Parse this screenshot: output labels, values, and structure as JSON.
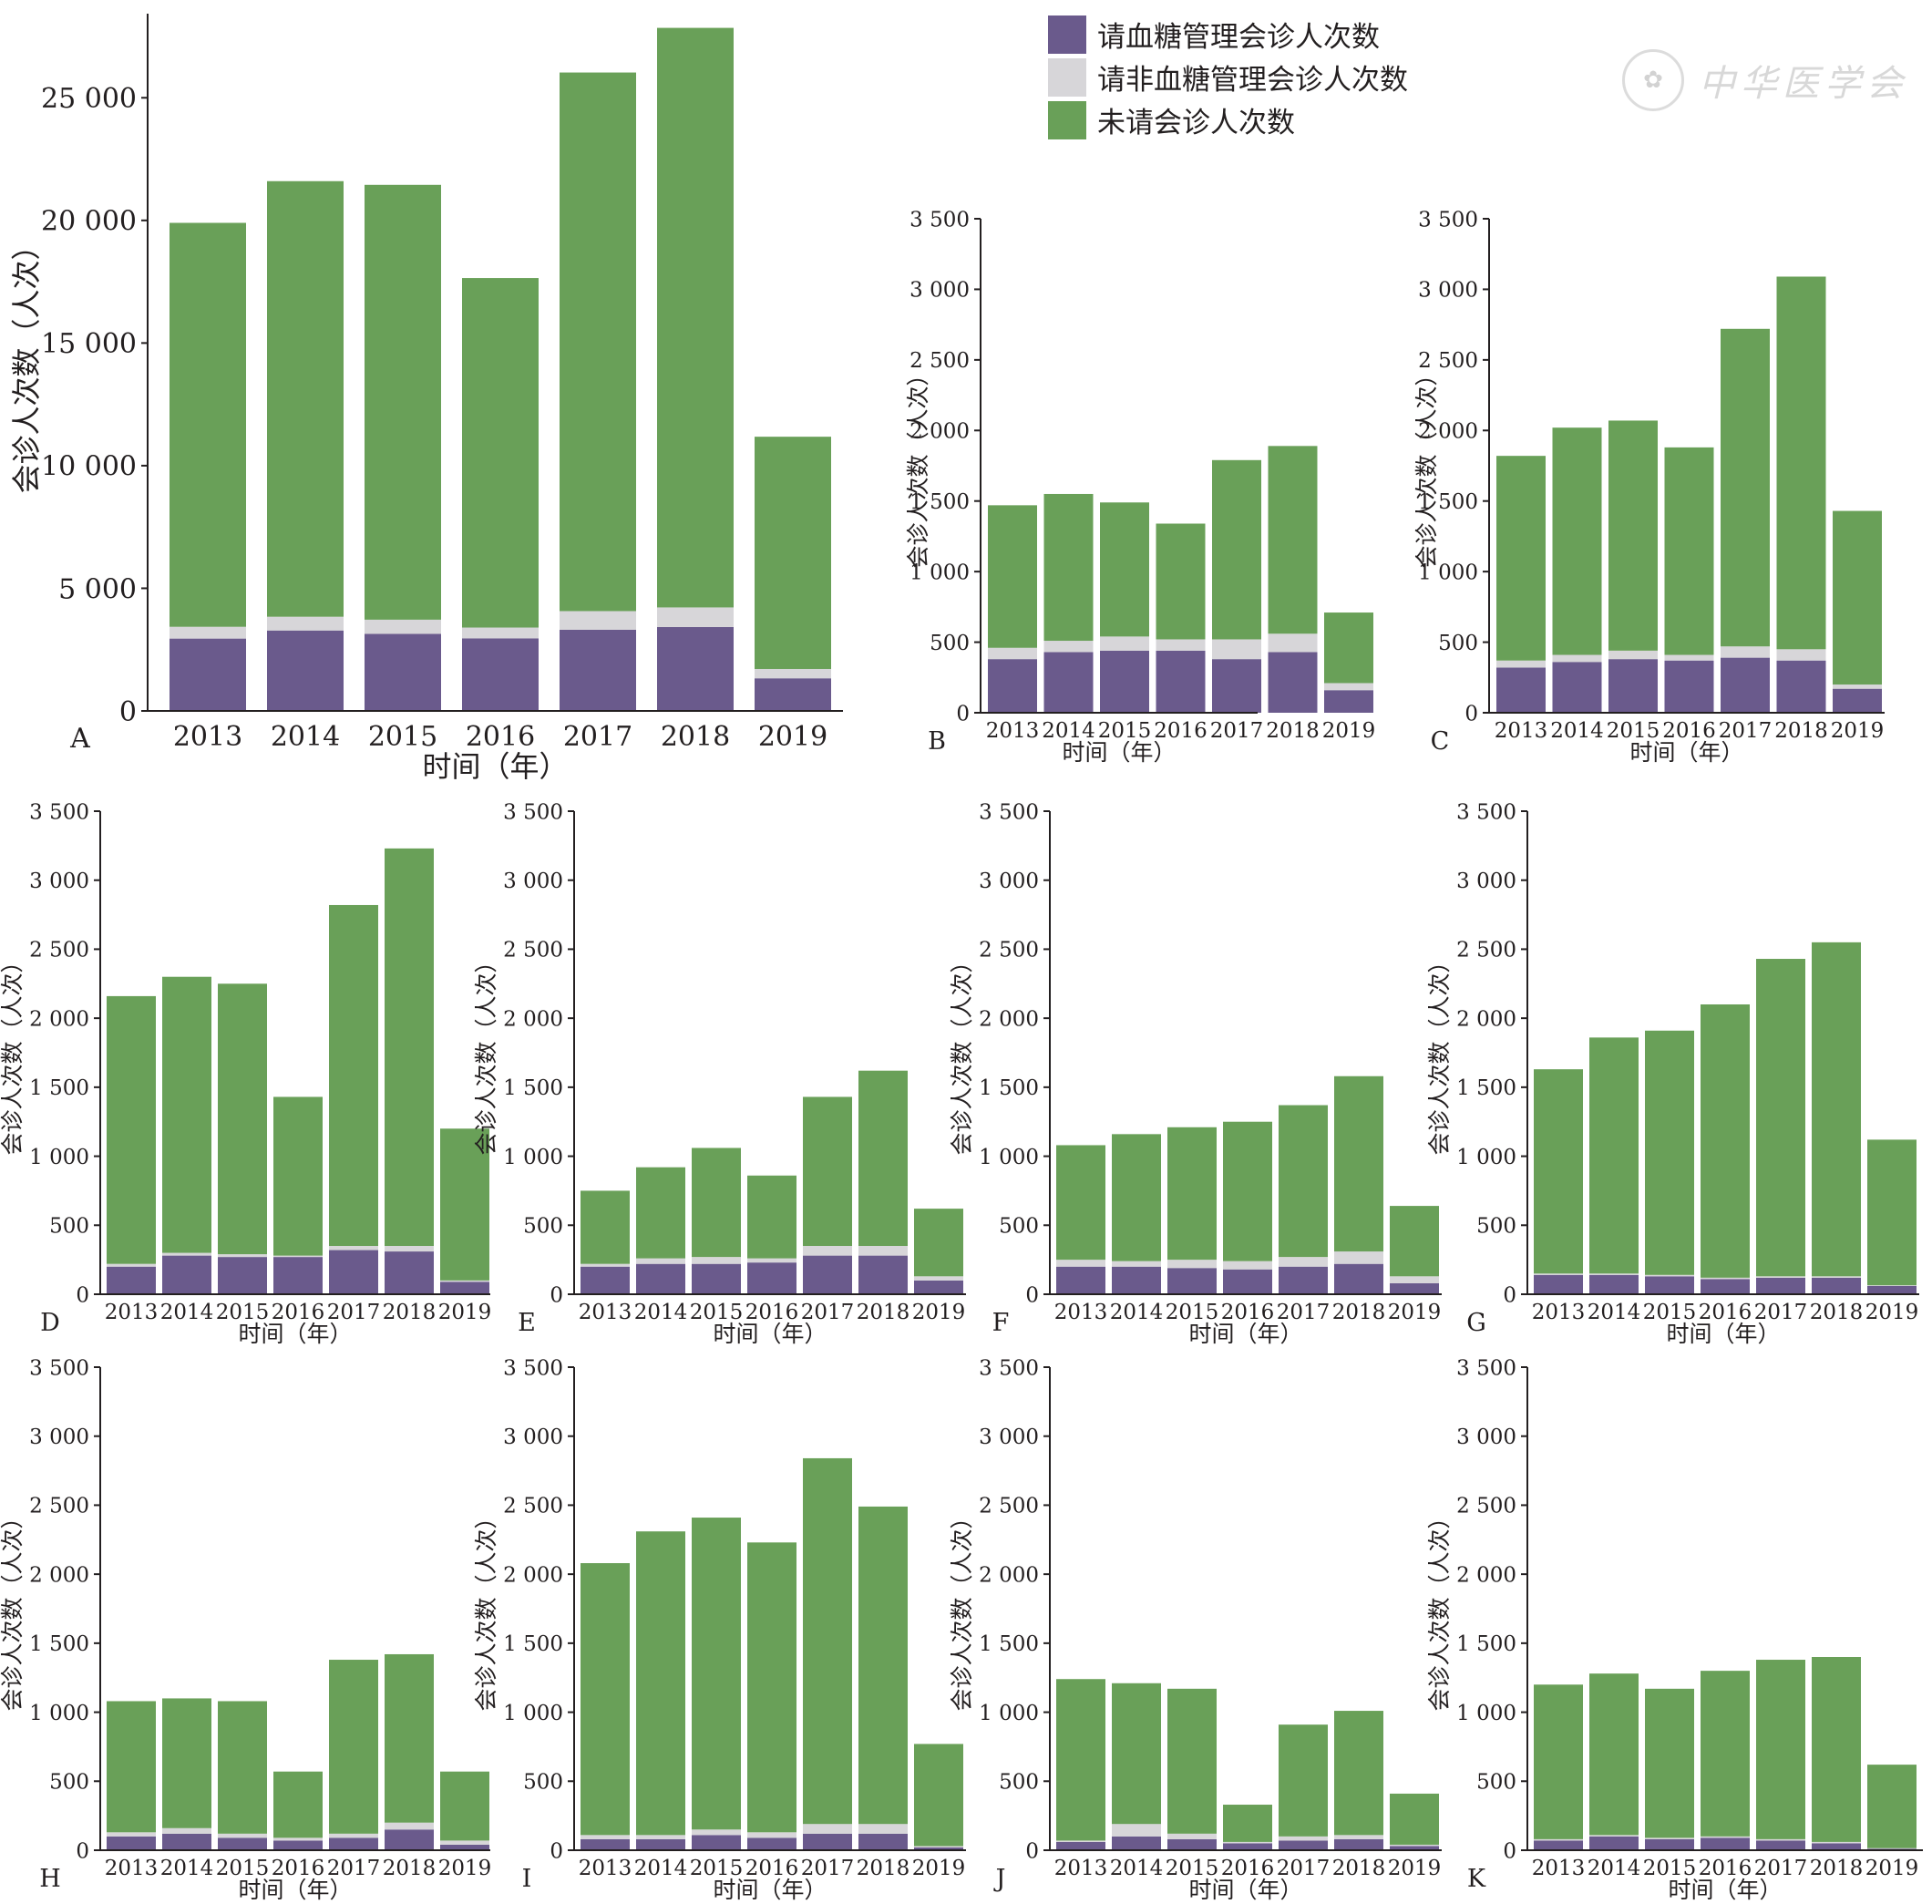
{
  "legend": {
    "items": [
      {
        "label": "请血糖管理会诊人次数",
        "color": "#6a5a8c"
      },
      {
        "label": "请非血糖管理会诊人次数",
        "color": "#d7d6d9"
      },
      {
        "label": "未请会诊人次数",
        "color": "#69a058"
      }
    ]
  },
  "watermark": {
    "seal": "✿",
    "text": "中华医学会"
  },
  "chart_data": [
    {
      "id": "A",
      "panel_label": "A",
      "type": "bar",
      "stacked": true,
      "xlabel": "时间（年）",
      "ylabel": "会诊人次数（人次）",
      "categories": [
        "2013",
        "2014",
        "2015",
        "2016",
        "2017",
        "2018",
        "2019"
      ],
      "ylim": [
        0,
        27500
      ],
      "yticks": [
        0,
        5000,
        10000,
        15000,
        20000,
        25000
      ],
      "ytick_labels": [
        "0",
        "5 000",
        "10 000",
        "15 000",
        "20 000",
        "25 000"
      ],
      "series": [
        {
          "name": "请血糖管理会诊人次数",
          "values": [
            2950,
            3280,
            3140,
            2960,
            3310,
            3420,
            1330
          ]
        },
        {
          "name": "请非血糖管理会诊人次数",
          "values": [
            480,
            560,
            580,
            440,
            760,
            800,
            380
          ]
        },
        {
          "name": "未请会诊人次数",
          "values": [
            16470,
            17760,
            17730,
            14250,
            21960,
            23630,
            9470
          ]
        }
      ]
    },
    {
      "id": "B",
      "panel_label": "B",
      "type": "bar",
      "stacked": true,
      "xlabel": "时间（年）",
      "ylabel": "会诊人次数（人次）",
      "categories": [
        "2013",
        "2014",
        "2015",
        "2016",
        "2017",
        "2018",
        "2019"
      ],
      "ylim": [
        0,
        3500
      ],
      "yticks": [
        0,
        500,
        1000,
        1500,
        2000,
        2500,
        3000,
        3500
      ],
      "ytick_labels": [
        "0",
        "500",
        "1 000",
        "1 500",
        "2 000",
        "2 500",
        "3 000",
        "3 500"
      ],
      "series": [
        {
          "name": "请血糖管理会诊人次数",
          "values": [
            380,
            430,
            440,
            440,
            380,
            430,
            160
          ]
        },
        {
          "name": "请非血糖管理会诊人次数",
          "values": [
            80,
            80,
            100,
            80,
            140,
            130,
            50
          ]
        },
        {
          "name": "未请会诊人次数",
          "values": [
            1010,
            1040,
            950,
            820,
            1270,
            1330,
            500
          ]
        }
      ]
    },
    {
      "id": "C",
      "panel_label": "C",
      "type": "bar",
      "stacked": true,
      "xlabel": "时间（年）",
      "ylabel": "会诊人次数（人次）",
      "categories": [
        "2013",
        "2014",
        "2015",
        "2016",
        "2017",
        "2018",
        "2019"
      ],
      "ylim": [
        0,
        3500
      ],
      "yticks": [
        0,
        500,
        1000,
        1500,
        2000,
        2500,
        3000,
        3500
      ],
      "ytick_labels": [
        "0",
        "500",
        "1 000",
        "1 500",
        "2 000",
        "2 500",
        "3 000",
        "3 500"
      ],
      "series": [
        {
          "name": "请血糖管理会诊人次数",
          "values": [
            320,
            360,
            380,
            370,
            390,
            370,
            170
          ]
        },
        {
          "name": "请非血糖管理会诊人次数",
          "values": [
            50,
            50,
            60,
            40,
            80,
            80,
            30
          ]
        },
        {
          "name": "未请会诊人次数",
          "values": [
            1450,
            1610,
            1630,
            1470,
            2250,
            2640,
            1230
          ]
        }
      ]
    },
    {
      "id": "D",
      "panel_label": "D",
      "type": "bar",
      "stacked": true,
      "xlabel": "时间（年）",
      "ylabel": "会诊人次数（人次）",
      "categories": [
        "2013",
        "2014",
        "2015",
        "2016",
        "2017",
        "2018",
        "2019"
      ],
      "ylim": [
        0,
        3500
      ],
      "yticks": [
        0,
        500,
        1000,
        1500,
        2000,
        2500,
        3000,
        3500
      ],
      "ytick_labels": [
        "0",
        "500",
        "1 000",
        "1 500",
        "2 000",
        "2 500",
        "3 000",
        "3 500"
      ],
      "series": [
        {
          "name": "请血糖管理会诊人次数",
          "values": [
            200,
            280,
            270,
            270,
            320,
            310,
            90
          ]
        },
        {
          "name": "请非血糖管理会诊人次数",
          "values": [
            20,
            20,
            20,
            10,
            30,
            40,
            10
          ]
        },
        {
          "name": "未请会诊人次数",
          "values": [
            1940,
            2000,
            1960,
            1150,
            2470,
            2880,
            1100
          ]
        }
      ]
    },
    {
      "id": "E",
      "panel_label": "E",
      "type": "bar",
      "stacked": true,
      "xlabel": "时间（年）",
      "ylabel": "会诊人次数（人次）",
      "categories": [
        "2013",
        "2014",
        "2015",
        "2016",
        "2017",
        "2018",
        "2019"
      ],
      "ylim": [
        0,
        3500
      ],
      "yticks": [
        0,
        500,
        1000,
        1500,
        2000,
        2500,
        3000,
        3500
      ],
      "ytick_labels": [
        "0",
        "500",
        "1 000",
        "1 500",
        "2 000",
        "2 500",
        "3 000",
        "3 500"
      ],
      "series": [
        {
          "name": "请血糖管理会诊人次数",
          "values": [
            200,
            220,
            220,
            230,
            280,
            280,
            100
          ]
        },
        {
          "name": "请非血糖管理会诊人次数",
          "values": [
            20,
            40,
            50,
            30,
            70,
            70,
            30
          ]
        },
        {
          "name": "未请会诊人次数",
          "values": [
            530,
            660,
            790,
            600,
            1080,
            1270,
            490
          ]
        }
      ]
    },
    {
      "id": "F",
      "panel_label": "F",
      "type": "bar",
      "stacked": true,
      "xlabel": "时间（年）",
      "ylabel": "会诊人次数（人次）",
      "categories": [
        "2013",
        "2014",
        "2015",
        "2016",
        "2017",
        "2018",
        "2019"
      ],
      "ylim": [
        0,
        3500
      ],
      "yticks": [
        0,
        500,
        1000,
        1500,
        2000,
        2500,
        3000,
        3500
      ],
      "ytick_labels": [
        "0",
        "500",
        "1 000",
        "1 500",
        "2 000",
        "2 500",
        "3 000",
        "3 500"
      ],
      "series": [
        {
          "name": "请血糖管理会诊人次数",
          "values": [
            200,
            200,
            190,
            180,
            200,
            220,
            80
          ]
        },
        {
          "name": "请非血糖管理会诊人次数",
          "values": [
            50,
            40,
            60,
            60,
            70,
            90,
            50
          ]
        },
        {
          "name": "未请会诊人次数",
          "values": [
            830,
            920,
            960,
            1010,
            1100,
            1270,
            510
          ]
        }
      ]
    },
    {
      "id": "G",
      "panel_label": "G",
      "type": "bar",
      "stacked": true,
      "xlabel": "时间（年）",
      "ylabel": "会诊人次数（人次）",
      "categories": [
        "2013",
        "2014",
        "2015",
        "2016",
        "2017",
        "2018",
        "2019"
      ],
      "ylim": [
        0,
        3500
      ],
      "yticks": [
        0,
        500,
        1000,
        1500,
        2000,
        2500,
        3000,
        3500
      ],
      "ytick_labels": [
        "0",
        "500",
        "1 000",
        "1 500",
        "2 000",
        "2 500",
        "3 000",
        "3 500"
      ],
      "series": [
        {
          "name": "请血糖管理会诊人次数",
          "values": [
            140,
            140,
            130,
            110,
            120,
            120,
            60
          ]
        },
        {
          "name": "请非血糖管理会诊人次数",
          "values": [
            10,
            10,
            10,
            10,
            10,
            10,
            5
          ]
        },
        {
          "name": "未请会诊人次数",
          "values": [
            1480,
            1710,
            1770,
            1980,
            2300,
            2420,
            1055
          ]
        }
      ]
    },
    {
      "id": "H",
      "panel_label": "H",
      "type": "bar",
      "stacked": true,
      "xlabel": "时间（年）",
      "ylabel": "会诊人次数（人次）",
      "categories": [
        "2013",
        "2014",
        "2015",
        "2016",
        "2017",
        "2018",
        "2019"
      ],
      "ylim": [
        0,
        3500
      ],
      "yticks": [
        0,
        500,
        1000,
        1500,
        2000,
        2500,
        3000,
        3500
      ],
      "ytick_labels": [
        "0",
        "500",
        "1 000",
        "1 500",
        "2 000",
        "2 500",
        "3 000",
        "3 500"
      ],
      "series": [
        {
          "name": "请血糖管理会诊人次数",
          "values": [
            100,
            120,
            90,
            70,
            90,
            150,
            40
          ]
        },
        {
          "name": "请非血糖管理会诊人次数",
          "values": [
            30,
            40,
            30,
            20,
            30,
            50,
            30
          ]
        },
        {
          "name": "未请会诊人次数",
          "values": [
            950,
            940,
            960,
            480,
            1260,
            1220,
            500
          ]
        }
      ]
    },
    {
      "id": "I",
      "panel_label": "I",
      "type": "bar",
      "stacked": true,
      "xlabel": "时间（年）",
      "ylabel": "会诊人次数（人次）",
      "categories": [
        "2013",
        "2014",
        "2015",
        "2016",
        "2017",
        "2018",
        "2019"
      ],
      "ylim": [
        0,
        3500
      ],
      "yticks": [
        0,
        500,
        1000,
        1500,
        2000,
        2500,
        3000,
        3500
      ],
      "ytick_labels": [
        "0",
        "500",
        "1 000",
        "1 500",
        "2 000",
        "2 500",
        "3 000",
        "3 500"
      ],
      "series": [
        {
          "name": "请血糖管理会诊人次数",
          "values": [
            80,
            80,
            110,
            90,
            120,
            120,
            20
          ]
        },
        {
          "name": "请非血糖管理会诊人次数",
          "values": [
            30,
            30,
            40,
            40,
            70,
            70,
            10
          ]
        },
        {
          "name": "未请会诊人次数",
          "values": [
            1970,
            2200,
            2260,
            2100,
            2650,
            2300,
            740
          ]
        }
      ]
    },
    {
      "id": "J",
      "panel_label": "J",
      "type": "bar",
      "stacked": true,
      "xlabel": "时间（年）",
      "ylabel": "会诊人次数（人次）",
      "categories": [
        "2013",
        "2014",
        "2015",
        "2016",
        "2017",
        "2018",
        "2019"
      ],
      "ylim": [
        0,
        3500
      ],
      "yticks": [
        0,
        500,
        1000,
        1500,
        2000,
        2500,
        3000,
        3500
      ],
      "ytick_labels": [
        "0",
        "500",
        "1 000",
        "1 500",
        "2 000",
        "2 500",
        "3 000",
        "3 500"
      ],
      "series": [
        {
          "name": "请血糖管理会诊人次数",
          "values": [
            60,
            100,
            80,
            50,
            70,
            80,
            30
          ]
        },
        {
          "name": "请非血糖管理会诊人次数",
          "values": [
            10,
            90,
            40,
            10,
            30,
            30,
            10
          ]
        },
        {
          "name": "未请会诊人次数",
          "values": [
            1170,
            1020,
            1050,
            270,
            810,
            900,
            370
          ]
        }
      ]
    },
    {
      "id": "K",
      "panel_label": "K",
      "type": "bar",
      "stacked": true,
      "xlabel": "时间（年）",
      "ylabel": "会诊人次数（人次）",
      "categories": [
        "2013",
        "2014",
        "2015",
        "2016",
        "2017",
        "2018",
        "2019"
      ],
      "ylim": [
        0,
        3500
      ],
      "yticks": [
        0,
        500,
        1000,
        1500,
        2000,
        2500,
        3000,
        3500
      ],
      "ytick_labels": [
        "0",
        "500",
        "1 000",
        "1 500",
        "2 000",
        "2 500",
        "3 000",
        "3 500"
      ],
      "series": [
        {
          "name": "请血糖管理会诊人次数",
          "values": [
            70,
            100,
            80,
            90,
            70,
            50,
            10
          ]
        },
        {
          "name": "请非血糖管理会诊人次数",
          "values": [
            10,
            10,
            10,
            10,
            10,
            10,
            5
          ]
        },
        {
          "name": "未请会诊人次数",
          "values": [
            1120,
            1170,
            1080,
            1200,
            1300,
            1340,
            605
          ]
        }
      ]
    }
  ]
}
